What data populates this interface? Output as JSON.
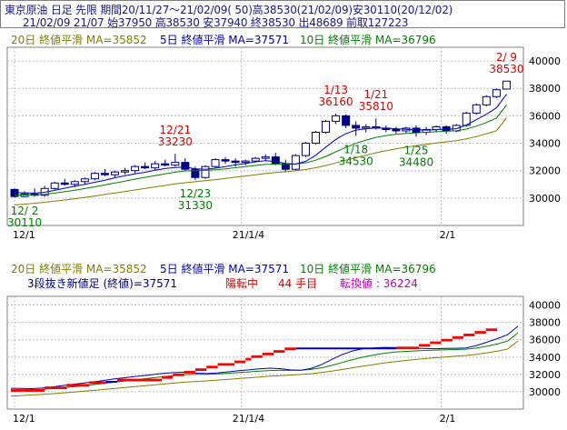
{
  "header": {
    "line1": "東京原油 日足 先限 期間20/11/27～21/02/09( 50)高38530(21/02/09)安30110(20/12/02)",
    "line2": "21/02/09 21/07 始37950 高38530 安37940 終38530 出48689 前取127223"
  },
  "upper_panel": {
    "ma_labels": [
      {
        "text": "20日 終値平滑 MA=35852",
        "color": "#808000"
      },
      {
        "text": "5日 終値平滑 MA=37571",
        "color": "#0000c0"
      },
      {
        "text": "10日 終値平滑 MA=36796",
        "color": "#008000"
      }
    ]
  },
  "lower_panel": {
    "ma_labels": [
      {
        "text": "20日 終値平滑 MA=35852",
        "color": "#808000"
      },
      {
        "text": "5日 終値平滑 MA=37571",
        "color": "#0000c0"
      },
      {
        "text": "10日 終値平滑 MA=36796",
        "color": "#008000"
      }
    ],
    "status": [
      {
        "text": "3段抜き新値足 (終値)=37571",
        "color": "#000080"
      },
      {
        "text": "陽転中",
        "color": "#e00000"
      },
      {
        "text": "44 手目",
        "color": "#e00000"
      },
      {
        "text": "転換値 : 36224",
        "color": "#c000c0"
      }
    ]
  },
  "x_ticks": [
    "12/1",
    "21/1/4",
    "2/1"
  ],
  "y_ticks": [
    28000,
    30000,
    32000,
    34000,
    36000,
    38000,
    40000
  ],
  "colors": {
    "up": "#0000c0",
    "down": "#000080",
    "ma20": "#808000",
    "ma5": "#0000c0",
    "ma10": "#008000",
    "annot_high": "#e00000",
    "annot_low": "#008000",
    "kagi_up": "#ff0000",
    "kagi_down": "#0000c0"
  },
  "chart_data": [
    {
      "type": "candlestick",
      "period": "20/11/27～21/02/09",
      "ylim": [
        28000,
        41000
      ],
      "candles": [
        [
          30630,
          30700,
          30050,
          30110
        ],
        [
          30110,
          30500,
          30050,
          30300
        ],
        [
          30300,
          30700,
          30100,
          30200
        ],
        [
          30200,
          30900,
          30100,
          30700
        ],
        [
          30700,
          31200,
          30600,
          31100
        ],
        [
          31100,
          31400,
          30900,
          31000
        ],
        [
          31000,
          31300,
          30800,
          31200
        ],
        [
          31200,
          31500,
          31000,
          31400
        ],
        [
          31400,
          31900,
          31300,
          31800
        ],
        [
          31800,
          32100,
          31600,
          31700
        ],
        [
          31700,
          32000,
          31500,
          31900
        ],
        [
          31900,
          32200,
          31700,
          32000
        ],
        [
          32000,
          32400,
          31800,
          32300
        ],
        [
          32300,
          32600,
          32100,
          32200
        ],
        [
          32200,
          32700,
          32000,
          32500
        ],
        [
          32500,
          32800,
          32300,
          32400
        ],
        [
          32400,
          33230,
          32300,
          32600
        ],
        [
          32600,
          32900,
          32000,
          32100
        ],
        [
          32100,
          32300,
          31330,
          31500
        ],
        [
          31500,
          32400,
          31400,
          32300
        ],
        [
          32300,
          32900,
          32200,
          32800
        ],
        [
          32800,
          33000,
          32500,
          32700
        ],
        [
          32700,
          32900,
          32300,
          32600
        ],
        [
          32600,
          32800,
          32400,
          32700
        ],
        [
          32700,
          33000,
          32600,
          32900
        ],
        [
          32900,
          33200,
          32700,
          33000
        ],
        [
          33000,
          33300,
          32400,
          32500
        ],
        [
          32500,
          32800,
          31900,
          32100
        ],
        [
          32100,
          33200,
          32000,
          33100
        ],
        [
          33100,
          34100,
          33000,
          34000
        ],
        [
          34000,
          34900,
          33900,
          34800
        ],
        [
          34800,
          35700,
          34700,
          35600
        ],
        [
          35600,
          36160,
          35400,
          36000
        ],
        [
          36000,
          36100,
          35100,
          35300
        ],
        [
          35300,
          35600,
          34530,
          35100
        ],
        [
          35100,
          35400,
          34800,
          35200
        ],
        [
          35200,
          35810,
          35000,
          35100
        ],
        [
          35100,
          35300,
          34800,
          35000
        ],
        [
          35000,
          35200,
          34700,
          34900
        ],
        [
          34900,
          35200,
          34700,
          35100
        ],
        [
          35100,
          35300,
          34480,
          34800
        ],
        [
          34800,
          35200,
          34600,
          35000
        ],
        [
          35000,
          35300,
          34800,
          35200
        ],
        [
          35200,
          35300,
          34700,
          34900
        ],
        [
          34900,
          35400,
          34800,
          35300
        ],
        [
          35300,
          36300,
          35200,
          36200
        ],
        [
          36200,
          36900,
          36100,
          36800
        ],
        [
          36800,
          37500,
          36700,
          37400
        ],
        [
          37400,
          38000,
          37300,
          37900
        ],
        [
          37950,
          38530,
          37940,
          38530
        ]
      ],
      "ma5": [
        30400,
        30380,
        30360,
        30420,
        30560,
        30720,
        30860,
        31000,
        31150,
        31300,
        31480,
        31620,
        31760,
        31880,
        32030,
        32150,
        32230,
        32260,
        32140,
        32100,
        32180,
        32300,
        32420,
        32520,
        32640,
        32720,
        32670,
        32520,
        32480,
        32680,
        33120,
        33720,
        34280,
        34700,
        34960,
        35060,
        35120,
        35100,
        35060,
        35020,
        34980,
        34960,
        34990,
        35010,
        35060,
        35330,
        35720,
        36120,
        36580,
        37571
      ],
      "ma10": [
        30200,
        30220,
        30240,
        30280,
        30360,
        30460,
        30570,
        30690,
        30820,
        30960,
        31100,
        31240,
        31380,
        31510,
        31640,
        31770,
        31890,
        31980,
        32000,
        32010,
        32060,
        32130,
        32210,
        32290,
        32380,
        32450,
        32480,
        32470,
        32490,
        32570,
        32760,
        33040,
        33370,
        33700,
        33990,
        34230,
        34430,
        34560,
        34650,
        34710,
        34760,
        34800,
        34840,
        34870,
        34910,
        35030,
        35240,
        35510,
        35840,
        36796
      ],
      "ma20": [
        29500,
        29560,
        29620,
        29690,
        29770,
        29860,
        29950,
        30050,
        30150,
        30260,
        30370,
        30480,
        30590,
        30700,
        30810,
        30920,
        31030,
        31120,
        31190,
        31260,
        31340,
        31430,
        31520,
        31610,
        31700,
        31790,
        31860,
        31920,
        31990,
        32080,
        32210,
        32370,
        32560,
        32760,
        32950,
        33130,
        33300,
        33450,
        33590,
        33710,
        33820,
        33920,
        34010,
        34100,
        34190,
        34320,
        34490,
        34690,
        34920,
        35852
      ],
      "annotations": [
        {
          "label": "12/ 2",
          "value": "30110",
          "candle": 1,
          "pos": "below"
        },
        {
          "label": "12/21",
          "value": "33230",
          "candle": 16,
          "pos": "above"
        },
        {
          "label": "12/23",
          "value": "31330",
          "candle": 18,
          "pos": "below"
        },
        {
          "label": "1/13",
          "value": "36160",
          "candle": 32,
          "pos": "above"
        },
        {
          "label": "1/18",
          "value": "34530",
          "candle": 34,
          "pos": "below"
        },
        {
          "label": "1/21",
          "value": "35810",
          "candle": 36,
          "pos": "above"
        },
        {
          "label": "1/25",
          "value": "34480",
          "candle": 40,
          "pos": "below"
        },
        {
          "label": "2/ 9",
          "value": "38530",
          "candle": 49,
          "pos": "above"
        }
      ]
    },
    {
      "type": "kagi_new_price_bars",
      "method": "3段抜き新値足 (終値)",
      "ylim": [
        28000,
        41000
      ],
      "bricks": [
        {
          "x0": 0,
          "x1": 6,
          "low": 30000,
          "high": 30300,
          "dir": "up"
        },
        {
          "x0": 6,
          "x1": 10,
          "low": 30300,
          "high": 30600,
          "dir": "up"
        },
        {
          "x0": 10,
          "x1": 14,
          "low": 30600,
          "high": 30900,
          "dir": "up"
        },
        {
          "x0": 14,
          "x1": 17,
          "low": 30900,
          "high": 31200,
          "dir": "up"
        },
        {
          "x0": 17,
          "x1": 19,
          "low": 31050,
          "high": 31250,
          "dir": "down"
        },
        {
          "x0": 19,
          "x1": 27,
          "low": 31200,
          "high": 31500,
          "dir": "up"
        },
        {
          "x0": 27,
          "x1": 29,
          "low": 31500,
          "high": 31800,
          "dir": "up"
        },
        {
          "x0": 29,
          "x1": 31,
          "low": 31800,
          "high": 32100,
          "dir": "up"
        },
        {
          "x0": 31,
          "x1": 33,
          "low": 32100,
          "high": 32400,
          "dir": "up"
        },
        {
          "x0": 33,
          "x1": 35,
          "low": 32400,
          "high": 32700,
          "dir": "up"
        },
        {
          "x0": 35,
          "x1": 37,
          "low": 32700,
          "high": 33000,
          "dir": "up"
        },
        {
          "x0": 37,
          "x1": 40,
          "low": 33000,
          "high": 33300,
          "dir": "up"
        },
        {
          "x0": 40,
          "x1": 42,
          "low": 33300,
          "high": 33600,
          "dir": "up"
        },
        {
          "x0": 42,
          "x1": 43,
          "low": 33600,
          "high": 33900,
          "dir": "up"
        },
        {
          "x0": 43,
          "x1": 45,
          "low": 33900,
          "high": 34200,
          "dir": "up"
        },
        {
          "x0": 45,
          "x1": 47,
          "low": 34200,
          "high": 34500,
          "dir": "up"
        },
        {
          "x0": 47,
          "x1": 49,
          "low": 34500,
          "high": 34800,
          "dir": "up"
        },
        {
          "x0": 49,
          "x1": 51,
          "low": 34800,
          "high": 35100,
          "dir": "up"
        },
        {
          "x0": 51,
          "x1": 69,
          "low": 34900,
          "high": 35100,
          "dir": "down"
        },
        {
          "x0": 69,
          "x1": 73,
          "low": 34900,
          "high": 35200,
          "dir": "up"
        },
        {
          "x0": 73,
          "x1": 75,
          "low": 35200,
          "high": 35500,
          "dir": "up"
        },
        {
          "x0": 75,
          "x1": 77,
          "low": 35500,
          "high": 35800,
          "dir": "up"
        },
        {
          "x0": 77,
          "x1": 79,
          "low": 35800,
          "high": 36100,
          "dir": "up"
        },
        {
          "x0": 79,
          "x1": 81,
          "low": 36100,
          "high": 36400,
          "dir": "up"
        },
        {
          "x0": 81,
          "x1": 83,
          "low": 36400,
          "high": 36700,
          "dir": "up"
        },
        {
          "x0": 83,
          "x1": 85,
          "low": 36700,
          "high": 37000,
          "dir": "up"
        },
        {
          "x0": 85,
          "x1": 87,
          "low": 37000,
          "high": 37300,
          "dir": "up"
        }
      ]
    }
  ]
}
